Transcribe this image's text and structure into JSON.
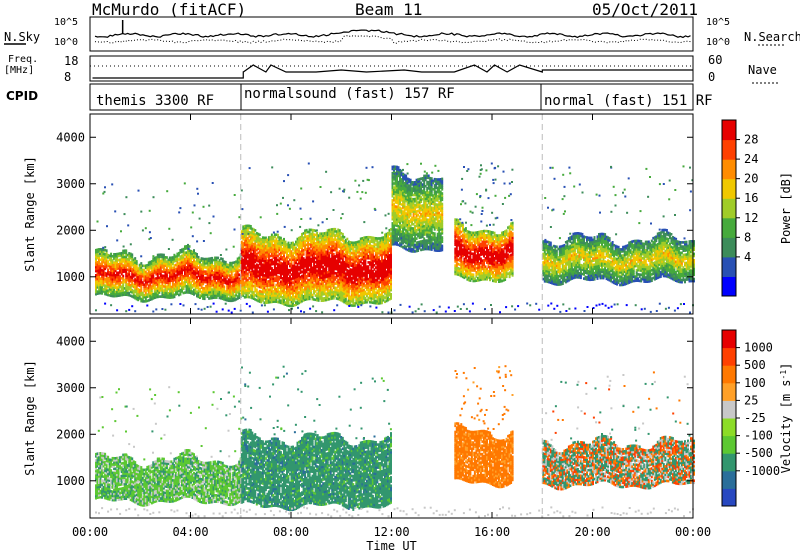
{
  "header": {
    "station": "McMurdo (fitACF)",
    "beam": "Beam 11",
    "date": "05/Oct/2011"
  },
  "noise_panel": {
    "left_label": "N.Sky",
    "right_label": "N.Search",
    "left_ticks": [
      "10^5",
      "10^0"
    ],
    "right_ticks": [
      "10^5",
      "10^0"
    ]
  },
  "freq_panel": {
    "left_label_1": "Freq.",
    "left_label_2": "[MHz]",
    "right_label": "Nave",
    "left_ticks": [
      "18",
      "8"
    ],
    "right_ticks": [
      "60",
      "0"
    ]
  },
  "cpid": {
    "label": "CPID",
    "segments": [
      "themis 3300 RF",
      "normalsound (fast) 157 RF",
      "normal (fast) 151 RF"
    ]
  },
  "colorbars": {
    "power": {
      "title": "Power [dB]",
      "ticks": [
        "28",
        "24",
        "20",
        "16",
        "12",
        "8",
        "4"
      ],
      "colors": [
        "#0000ff",
        "#2850b4",
        "#3c8c5a",
        "#46aa3c",
        "#a0cc28",
        "#f0c800",
        "#ff8c00",
        "#ff4000",
        "#e60000"
      ]
    },
    "velocity": {
      "title": "Velocity [m s",
      "title_sup": "-1",
      "title_close": "]",
      "ticks": [
        "1000",
        "500",
        "100",
        "25",
        "-25",
        "-100",
        "-500",
        "-1000"
      ],
      "colors": [
        "#2848c0",
        "#2a6e9a",
        "#32966e",
        "#5cc832",
        "#8cdc28",
        "#c8c8c8",
        "#ffa028",
        "#ff7800",
        "#ff4000",
        "#e60000"
      ]
    }
  },
  "chart_data": [
    {
      "type": "heatmap",
      "title": "Power",
      "ylabel": "Slant Range [km]",
      "xlabel": "Time UT",
      "ylim": [
        200,
        4500
      ],
      "xlim": [
        "00:00",
        "24:00"
      ],
      "yticks": [
        "1000",
        "2000",
        "3000",
        "4000"
      ],
      "x_tick_labels": [
        "00:00",
        "04:00",
        "08:00",
        "12:00",
        "16:00",
        "20:00",
        "00:00"
      ],
      "segments": [
        {
          "t0": 0.2,
          "t1": 6.0,
          "r0": 550,
          "r1": 1450,
          "level": "mid-high"
        },
        {
          "t0": 6.0,
          "t1": 12.0,
          "r0": 450,
          "r1": 1900,
          "level": "high"
        },
        {
          "t0": 12.0,
          "t1": 14.0,
          "r0": 1600,
          "r1": 3200,
          "level": "mid"
        },
        {
          "t0": 14.5,
          "t1": 16.8,
          "r0": 950,
          "r1": 2050,
          "level": "high"
        },
        {
          "t0": 18.0,
          "t1": 24.0,
          "r0": 900,
          "r1": 1800,
          "level": "mid"
        }
      ]
    },
    {
      "type": "heatmap",
      "title": "Velocity",
      "ylabel": "Slant Range [km]",
      "xlabel": "Time UT",
      "ylim": [
        200,
        4500
      ],
      "xlim": [
        "00:00",
        "24:00"
      ],
      "yticks": [
        "1000",
        "2000",
        "3000",
        "4000"
      ],
      "x_tick_labels": [
        "00:00",
        "04:00",
        "08:00",
        "12:00",
        "16:00",
        "20:00",
        "00:00"
      ],
      "segments": [
        {
          "t0": 0.2,
          "t1": 6.0,
          "r0": 550,
          "r1": 1450,
          "level": "green"
        },
        {
          "t0": 6.0,
          "t1": 12.0,
          "r0": 450,
          "r1": 1900,
          "level": "dark-green"
        },
        {
          "t0": 14.5,
          "t1": 16.8,
          "r0": 950,
          "r1": 2050,
          "level": "orange"
        },
        {
          "t0": 18.0,
          "t1": 24.0,
          "r0": 900,
          "r1": 1800,
          "level": "mixed"
        }
      ]
    }
  ]
}
